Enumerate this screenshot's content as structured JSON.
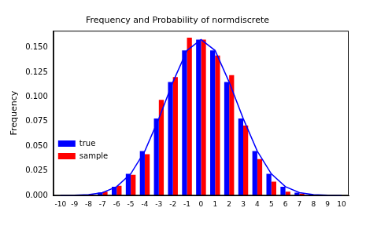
{
  "chart_data": {
    "type": "bar",
    "title": "Frequency and Probability of normdiscrete",
    "y_label": "Frequency",
    "categories": [
      "-10",
      "-9",
      "-8",
      "-7",
      "-6",
      "-5",
      "-4",
      "-3",
      "-2",
      "-1",
      "0",
      "1",
      "2",
      "3",
      "4",
      "5",
      "6",
      "7",
      "8",
      "9",
      "10"
    ],
    "series": [
      {
        "name": "true",
        "type": "bar",
        "color": "#0000ff",
        "values": [
          0.0001,
          0.0003,
          0.001,
          0.003,
          0.009,
          0.022,
          0.045,
          0.078,
          0.115,
          0.147,
          0.158,
          0.147,
          0.115,
          0.078,
          0.045,
          0.022,
          0.009,
          0.003,
          0.001,
          0.0003,
          0.0001
        ]
      },
      {
        "name": "sample",
        "type": "bar",
        "color": "#ff0000",
        "values": [
          0,
          0,
          0.001,
          0.004,
          0.01,
          0.021,
          0.042,
          0.097,
          0.12,
          0.16,
          0.158,
          0.142,
          0.122,
          0.071,
          0.037,
          0.014,
          0.004,
          0.002,
          0,
          0,
          0
        ]
      },
      {
        "type": "line",
        "color": "#0000ff",
        "line_style": "solid",
        "values": [
          0.0001,
          0.0003,
          0.001,
          0.003,
          0.009,
          0.022,
          0.045,
          0.078,
          0.115,
          0.147,
          0.158,
          0.147,
          0.115,
          0.078,
          0.045,
          0.022,
          0.009,
          0.003,
          0.001,
          0.0003,
          0.0001
        ]
      }
    ],
    "ylim": [
      0,
      0.167
    ],
    "yticks": [
      {
        "value": 0,
        "label": "0.000"
      },
      0.025,
      {
        "value": 0.05,
        "label": "0.050"
      },
      0.075,
      {
        "value": 0.1,
        "label": "0.100"
      },
      0.125,
      {
        "value": 0.15,
        "label": "0.150"
      }
    ],
    "legend": "upper right",
    "grid": false
  }
}
